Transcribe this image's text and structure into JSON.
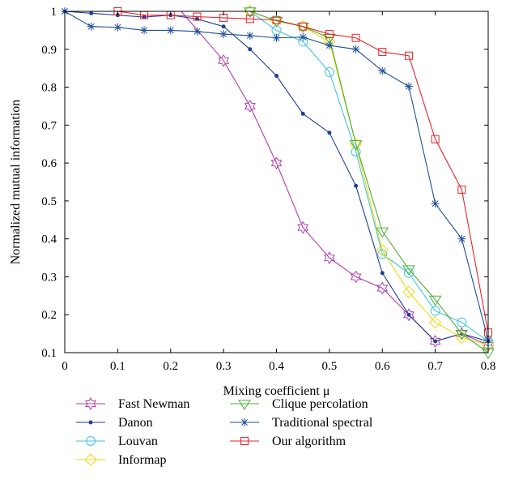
{
  "chart_data": {
    "type": "line",
    "xlabel": "Mixing coefficient μ",
    "ylabel": "Normalized mutual information",
    "xlim": [
      0,
      0.8
    ],
    "ylim": [
      0.1,
      1
    ],
    "xticks": [
      "0",
      "0.1",
      "0.2",
      "0.3",
      "0.4",
      "0.5",
      "0.6",
      "0.7",
      "0.8"
    ],
    "yticks": [
      "0.1",
      "0.2",
      "0.3",
      "0.4",
      "0.5",
      "0.6",
      "0.7",
      "0.8",
      "0.9",
      "1"
    ],
    "grid": false,
    "legend_position": "bottom",
    "series": [
      {
        "name": "Fast Newman",
        "color": "#b03cb0",
        "marker": "hexagram",
        "x": [
          0.3,
          0.35,
          0.4,
          0.45,
          0.5,
          0.55,
          0.6,
          0.65,
          0.7,
          0.75,
          0.8
        ],
        "y": [
          0.87,
          0.75,
          0.6,
          0.43,
          0.35,
          0.3,
          0.27,
          0.2,
          0.13,
          0.15,
          0.12
        ],
        "line_start": {
          "x": 0.22,
          "y": 1.0
        }
      },
      {
        "name": "Danon",
        "color": "#1f3f99",
        "marker": "dot",
        "x": [
          0.0,
          0.05,
          0.1,
          0.15,
          0.2,
          0.25,
          0.3,
          0.35,
          0.4,
          0.45,
          0.5,
          0.55,
          0.6,
          0.65,
          0.7,
          0.75,
          0.8
        ],
        "y": [
          1.0,
          0.995,
          0.99,
          0.985,
          0.99,
          0.98,
          0.96,
          0.9,
          0.83,
          0.73,
          0.68,
          0.54,
          0.31,
          0.2,
          0.13,
          0.15,
          0.13
        ]
      },
      {
        "name": "Louvan",
        "color": "#3fc6e0",
        "marker": "circle",
        "x": [
          0.35,
          0.4,
          0.45,
          0.5,
          0.55,
          0.6,
          0.65,
          0.7,
          0.75,
          0.8
        ],
        "y": [
          1.0,
          0.95,
          0.92,
          0.84,
          0.63,
          0.36,
          0.31,
          0.21,
          0.18,
          0.13
        ]
      },
      {
        "name": "Informap",
        "color": "#f2d80e",
        "marker": "diamond",
        "x": [
          0.35,
          0.4,
          0.45,
          0.5,
          0.55,
          0.6,
          0.65,
          0.7,
          0.75,
          0.8
        ],
        "y": [
          1.0,
          0.975,
          0.96,
          0.92,
          0.65,
          0.37,
          0.26,
          0.18,
          0.14,
          0.12
        ]
      },
      {
        "name": "Clique percolation",
        "color": "#4bb038",
        "marker": "triangle-down",
        "x": [
          0.35,
          0.4,
          0.45,
          0.5,
          0.55,
          0.6,
          0.65,
          0.7,
          0.75,
          0.8
        ],
        "y": [
          1.0,
          0.975,
          0.96,
          0.93,
          0.65,
          0.42,
          0.32,
          0.24,
          0.15,
          0.1
        ]
      },
      {
        "name": "Traditional spectral",
        "color": "#1f4e9a",
        "marker": "asterisk",
        "x": [
          0.0,
          0.05,
          0.1,
          0.15,
          0.2,
          0.25,
          0.3,
          0.35,
          0.4,
          0.45,
          0.5,
          0.55,
          0.6,
          0.65,
          0.7,
          0.75,
          0.8
        ],
        "y": [
          1.0,
          0.96,
          0.958,
          0.95,
          0.95,
          0.947,
          0.94,
          0.936,
          0.93,
          0.932,
          0.91,
          0.9,
          0.843,
          0.802,
          0.493,
          0.4,
          0.133
        ]
      },
      {
        "name": "Our algorithm",
        "color": "#e8232a",
        "marker": "square",
        "x": [
          0.1,
          0.15,
          0.2,
          0.25,
          0.3,
          0.35,
          0.4,
          0.45,
          0.5,
          0.55,
          0.6,
          0.65,
          0.7,
          0.75,
          0.8
        ],
        "y": [
          1.0,
          0.99,
          0.99,
          0.986,
          0.983,
          0.98,
          0.977,
          0.96,
          0.94,
          0.93,
          0.893,
          0.883,
          0.663,
          0.53,
          0.153
        ]
      }
    ]
  }
}
